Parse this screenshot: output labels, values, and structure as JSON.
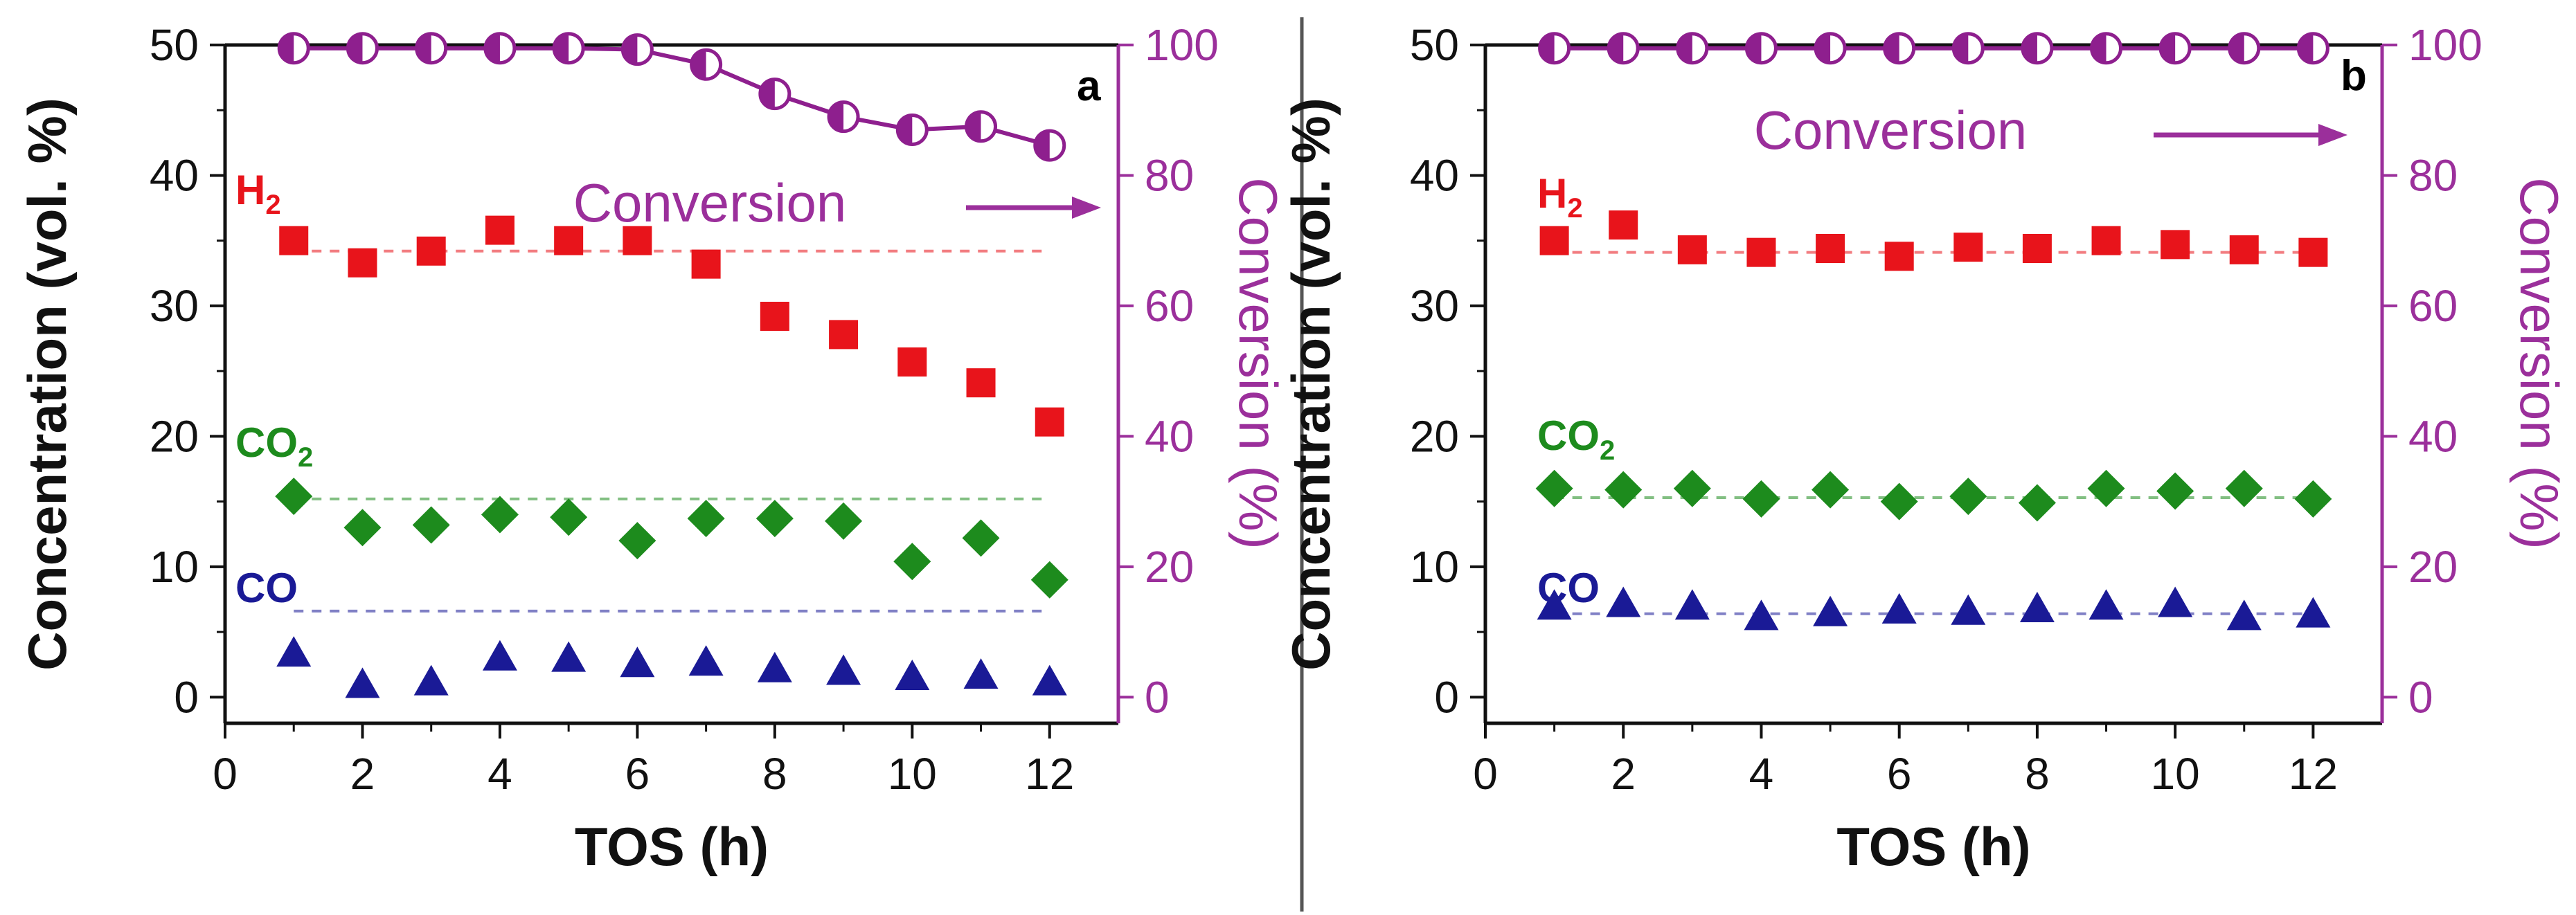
{
  "charts": [
    {
      "panel": "a",
      "type": "scatter",
      "chart_data": {
        "type": "scatter",
        "xlabel": "TOS (h)",
        "ylabel": "Concentration (vol. %)",
        "y2label": "Conversion (%)",
        "xlim": [
          0,
          13
        ],
        "ylim": [
          -2,
          50
        ],
        "y2lim": [
          -4,
          100
        ],
        "xticks": [
          0,
          2,
          4,
          6,
          8,
          10,
          12
        ],
        "yticks": [
          0,
          10,
          20,
          30,
          40,
          50
        ],
        "y2ticks": [
          0,
          20,
          40,
          60,
          80,
          100
        ],
        "x": [
          1,
          2,
          3,
          4,
          5,
          6,
          7,
          8,
          9,
          10,
          11,
          12
        ],
        "series": [
          {
            "name": "H2",
            "marker": "square",
            "color": "#e8141b",
            "values": [
              35,
              33.3,
              34.2,
              35.8,
              35,
              35,
              33.2,
              29.2,
              27.8,
              25.7,
              24.1,
              21.1
            ],
            "reference": 34.2
          },
          {
            "name": "CO2",
            "marker": "diamond",
            "color": "#1d8b1d",
            "values": [
              15.4,
              13,
              13.2,
              14,
              13.8,
              12,
              13.7,
              13.7,
              13.5,
              10.4,
              12.2,
              9
            ],
            "reference": 15.2
          },
          {
            "name": "CO",
            "marker": "triangle",
            "color": "#1a1a96",
            "values": [
              3.3,
              0.9,
              1.1,
              3,
              2.9,
              2.5,
              2.6,
              2.1,
              1.9,
              1.5,
              1.6,
              1.1
            ],
            "reference": 6.6
          },
          {
            "name": "Conversion",
            "marker": "half-circle",
            "color": "#8e1f8e",
            "axis": "right",
            "values": [
              99.5,
              99.5,
              99.5,
              99.5,
              99.5,
              99.3,
              97,
              92.5,
              89,
              87,
              87.5,
              84.6
            ]
          }
        ],
        "labels": {
          "H2": {
            "main": "H",
            "sub": "2"
          },
          "CO2": {
            "main": "CO",
            "sub": "2"
          },
          "CO": {
            "main": "CO",
            "sub": ""
          },
          "conversion": "Conversion"
        },
        "tag": "a"
      }
    },
    {
      "panel": "b",
      "type": "scatter",
      "chart_data": {
        "type": "scatter",
        "xlabel": "TOS (h)",
        "ylabel": "Concentration (vol. %)",
        "y2label": "Conversion (%)",
        "xlim": [
          0,
          13
        ],
        "ylim": [
          -2,
          50
        ],
        "y2lim": [
          -4,
          100
        ],
        "xticks": [
          0,
          2,
          4,
          6,
          8,
          10,
          12
        ],
        "yticks": [
          0,
          10,
          20,
          30,
          40,
          50
        ],
        "y2ticks": [
          0,
          20,
          40,
          60,
          80,
          100
        ],
        "x": [
          1,
          2,
          3,
          4,
          5,
          6,
          7,
          8,
          9,
          10,
          11,
          12
        ],
        "series": [
          {
            "name": "H2",
            "marker": "square",
            "color": "#e8141b",
            "values": [
              35,
              36.2,
              34.3,
              34.1,
              34.4,
              33.8,
              34.5,
              34.4,
              35,
              34.7,
              34.3,
              34.1
            ],
            "reference": 34.1
          },
          {
            "name": "CO2",
            "marker": "diamond",
            "color": "#1d8b1d",
            "values": [
              16,
              15.9,
              16,
              15.2,
              15.9,
              15,
              15.4,
              14.9,
              16,
              15.8,
              16,
              15.2
            ],
            "reference": 15.3
          },
          {
            "name": "CO",
            "marker": "triangle",
            "color": "#1a1a96",
            "values": [
              6.9,
              7.1,
              6.9,
              6.1,
              6.4,
              6.6,
              6.5,
              6.7,
              6.9,
              7.1,
              6.1,
              6.3
            ],
            "reference": 6.4
          },
          {
            "name": "Conversion",
            "marker": "half-circle",
            "color": "#8e1f8e",
            "axis": "right",
            "values": [
              99.5,
              99.5,
              99.5,
              99.5,
              99.5,
              99.5,
              99.5,
              99.5,
              99.5,
              99.5,
              99.5,
              99.5
            ]
          }
        ],
        "labels": {
          "H2": {
            "main": "H",
            "sub": "2"
          },
          "CO2": {
            "main": "CO",
            "sub": "2"
          },
          "CO": {
            "main": "CO",
            "sub": ""
          },
          "conversion": "Conversion"
        },
        "tag": "b"
      }
    }
  ]
}
